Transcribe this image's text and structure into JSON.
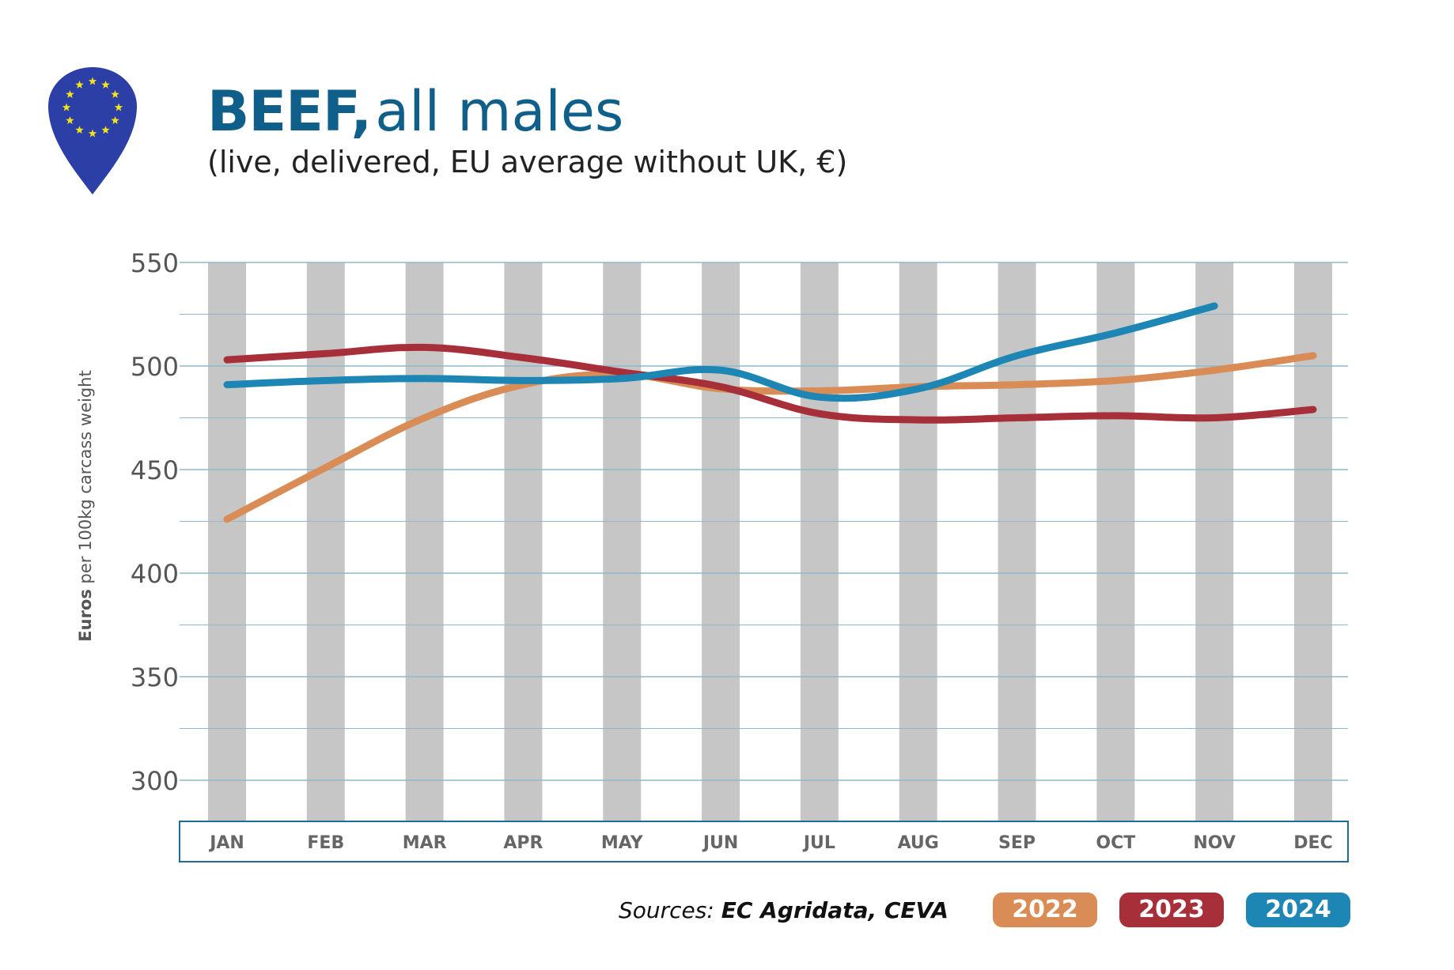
{
  "header": {
    "title_bold": "BEEF,",
    "title_rest": "all males",
    "subtitle": "(live, delivered, EU average without UK, €)"
  },
  "logo": {
    "icon": "eu-map-pin-icon",
    "color": "#2b3fa6",
    "star_color": "#f5e21a"
  },
  "source": {
    "prefix": "Sources:",
    "names": "EC Agridata, CEVA"
  },
  "colors": {
    "2022": "#d98c55",
    "2023": "#a62f3a",
    "2024": "#1d86b4",
    "grid": "#8fb8cc",
    "band": "#c6c6c6",
    "axis_box": "#1d6e92"
  },
  "chart_data": {
    "type": "line",
    "title": "BEEF, all males",
    "subtitle": "(live, delivered, EU average without UK, €)",
    "ylabel_bold": "Euros",
    "ylabel_rest": "per 100kg carcass weight",
    "categories": [
      "JAN",
      "FEB",
      "MAR",
      "APR",
      "MAY",
      "JUN",
      "JUL",
      "AUG",
      "SEP",
      "OCT",
      "NOV",
      "DEC"
    ],
    "yticks": [
      "550",
      "500",
      "450",
      "400",
      "350",
      "300"
    ],
    "ylim": [
      300,
      550
    ],
    "grid": true,
    "legend_position": "bottom-right",
    "series": [
      {
        "name": "2022",
        "color": "#d98c55",
        "values": [
          426,
          451,
          475,
          491,
          496,
          489,
          488,
          490,
          491,
          493,
          498,
          505
        ]
      },
      {
        "name": "2023",
        "color": "#a62f3a",
        "values": [
          503,
          506,
          509,
          504,
          497,
          490,
          477,
          474,
          475,
          476,
          475,
          479
        ]
      },
      {
        "name": "2024",
        "color": "#1d86b4",
        "values": [
          491,
          493,
          494,
          493,
          494,
          498,
          485,
          489,
          505,
          516,
          529,
          null
        ]
      }
    ]
  }
}
